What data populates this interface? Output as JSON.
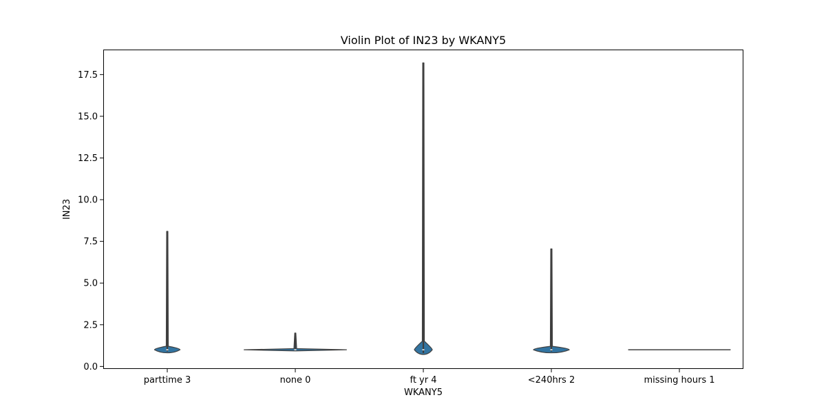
{
  "chart_data": {
    "type": "violin",
    "title": "Violin Plot of IN23 by WKANY5",
    "xlabel": "WKANY5",
    "ylabel": "IN23",
    "ylim": [
      -0.15,
      19.0
    ],
    "yticks": [
      "0.0",
      "2.5",
      "5.0",
      "7.5",
      "10.0",
      "12.5",
      "15.0",
      "17.5"
    ],
    "ytick_values": [
      0,
      2.5,
      5,
      7.5,
      10,
      12.5,
      15,
      17.5
    ],
    "categories": [
      "parttime 3",
      "none 0",
      "ft yr 4",
      "<240hrs 2",
      "missing hours 1"
    ],
    "violins": [
      {
        "category": "parttime 3",
        "min": 0.9,
        "max": 8.1,
        "median": 1.0,
        "body_half_width": 0.1
      },
      {
        "category": "none 0",
        "min": 0.97,
        "max": 2.0,
        "median": 1.0,
        "body_half_width": 0.4
      },
      {
        "category": "ft yr 4",
        "min": 0.8,
        "max": 18.2,
        "median": 1.0,
        "body_half_width": 0.07
      },
      {
        "category": "<240hrs 2",
        "min": 0.9,
        "max": 7.05,
        "median": 1.0,
        "body_half_width": 0.14
      },
      {
        "category": "missing hours 1",
        "min": 1.0,
        "max": 1.0,
        "median": 1.0,
        "body_half_width": 0.4
      }
    ],
    "color": "#3274a1",
    "edge_color": "#3f3f3f",
    "grid": false,
    "legend": "none"
  }
}
